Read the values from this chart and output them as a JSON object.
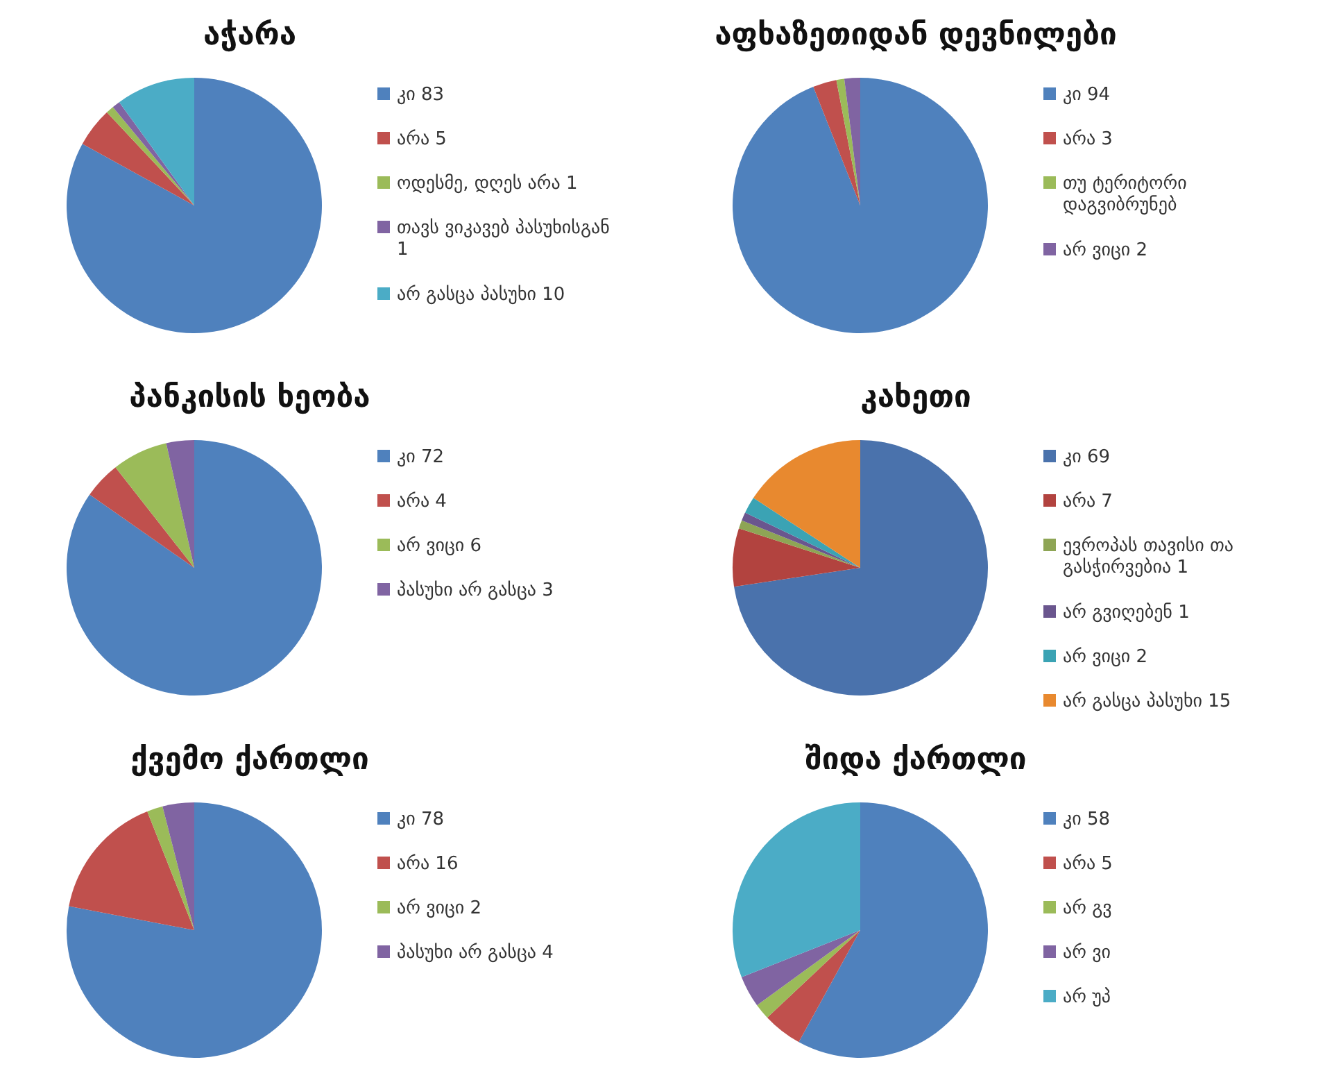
{
  "chart_data": [
    {
      "type": "pie",
      "title": "აჭარა",
      "categories": [
        "კი 83",
        "არა 5",
        "ოდესმე, დღეს არა 1",
        "თავს ვიკავებ პასუხისგან 1",
        "არ გასცა პასუხი 10"
      ],
      "values": [
        83,
        5,
        1,
        1,
        10
      ],
      "colors": [
        "#4f81bd",
        "#c0504d",
        "#9bbb59",
        "#8064a2",
        "#4bacc6"
      ],
      "legend": "right"
    },
    {
      "type": "pie",
      "title": "აფხაზეთიდან დევნილები",
      "categories": [
        "კი 94",
        "არა 3",
        "თუ ტერიტორი დაგვიბრუნებ",
        "არ ვიცი 2"
      ],
      "values": [
        94,
        3,
        1,
        2
      ],
      "colors": [
        "#4f81bd",
        "#c0504d",
        "#9bbb59",
        "#8064a2"
      ],
      "legend": "right"
    },
    {
      "type": "pie",
      "title": "პანკისის ხეობა",
      "categories": [
        "კი 72",
        "არა 4",
        "არ ვიცი 6",
        "პასუხი არ გასცა 3"
      ],
      "values": [
        72,
        4,
        6,
        3
      ],
      "colors": [
        "#4f81bd",
        "#c0504d",
        "#9bbb59",
        "#8064a2"
      ],
      "legend": "right"
    },
    {
      "type": "pie",
      "title": "კახეთი",
      "categories": [
        "კი 69",
        "არა 7",
        "ევროპას თავისი თა გასჭირვებია 1",
        "არ გვიღებენ 1",
        "არ ვიცი 2",
        "არ გასცა პასუხი 15"
      ],
      "values": [
        69,
        7,
        1,
        1,
        2,
        15
      ],
      "colors": [
        "#4a72ac",
        "#b2433f",
        "#8ea555",
        "#6a568e",
        "#3ba3b4",
        "#e8892f"
      ],
      "legend": "right"
    },
    {
      "type": "pie",
      "title": "ქვემო ქართლი",
      "categories": [
        "კი 78",
        "არა 16",
        "არ ვიცი 2",
        "პასუხი არ გასცა 4"
      ],
      "values": [
        78,
        16,
        2,
        4
      ],
      "colors": [
        "#4f81bd",
        "#c0504d",
        "#9bbb59",
        "#8064a2"
      ],
      "legend": "right"
    },
    {
      "type": "pie",
      "title": "შიდა ქართლი",
      "categories": [
        "კი 58",
        "არა 5",
        "არ გვ",
        "არ ვი",
        "არ უპ"
      ],
      "values": [
        58,
        5,
        2,
        4,
        31
      ],
      "colors": [
        "#4f81bd",
        "#c0504d",
        "#9bbb59",
        "#8064a2",
        "#4bacc6"
      ],
      "legend": "right"
    }
  ]
}
